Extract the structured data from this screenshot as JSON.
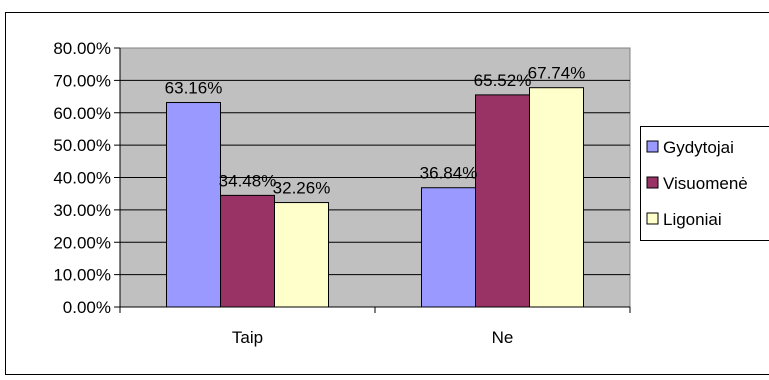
{
  "chart_data": {
    "type": "bar",
    "categories": [
      "Taip",
      "Ne"
    ],
    "series": [
      {
        "name": "Gydytojai",
        "values": [
          63.16,
          36.84
        ],
        "color": "#9999FF"
      },
      {
        "name": "Visuomenė",
        "values": [
          34.48,
          65.52
        ],
        "color": "#993366"
      },
      {
        "name": "Ligoniai",
        "values": [
          32.26,
          67.74
        ],
        "color": "#FFFFCC"
      }
    ],
    "data_labels": [
      [
        "63.16%",
        "36.84%"
      ],
      [
        "34.48%",
        "65.52%"
      ],
      [
        "32.26%",
        "67.74%"
      ]
    ],
    "y_ticks": [
      "0.00%",
      "10.00%",
      "20.00%",
      "30.00%",
      "40.00%",
      "50.00%",
      "60.00%",
      "70.00%",
      "80.00%"
    ],
    "ylim": [
      0,
      80
    ],
    "title": "",
    "xlabel": "",
    "ylabel": "",
    "grid": true,
    "legend": "right",
    "plot_background": "#C0C0C0"
  }
}
